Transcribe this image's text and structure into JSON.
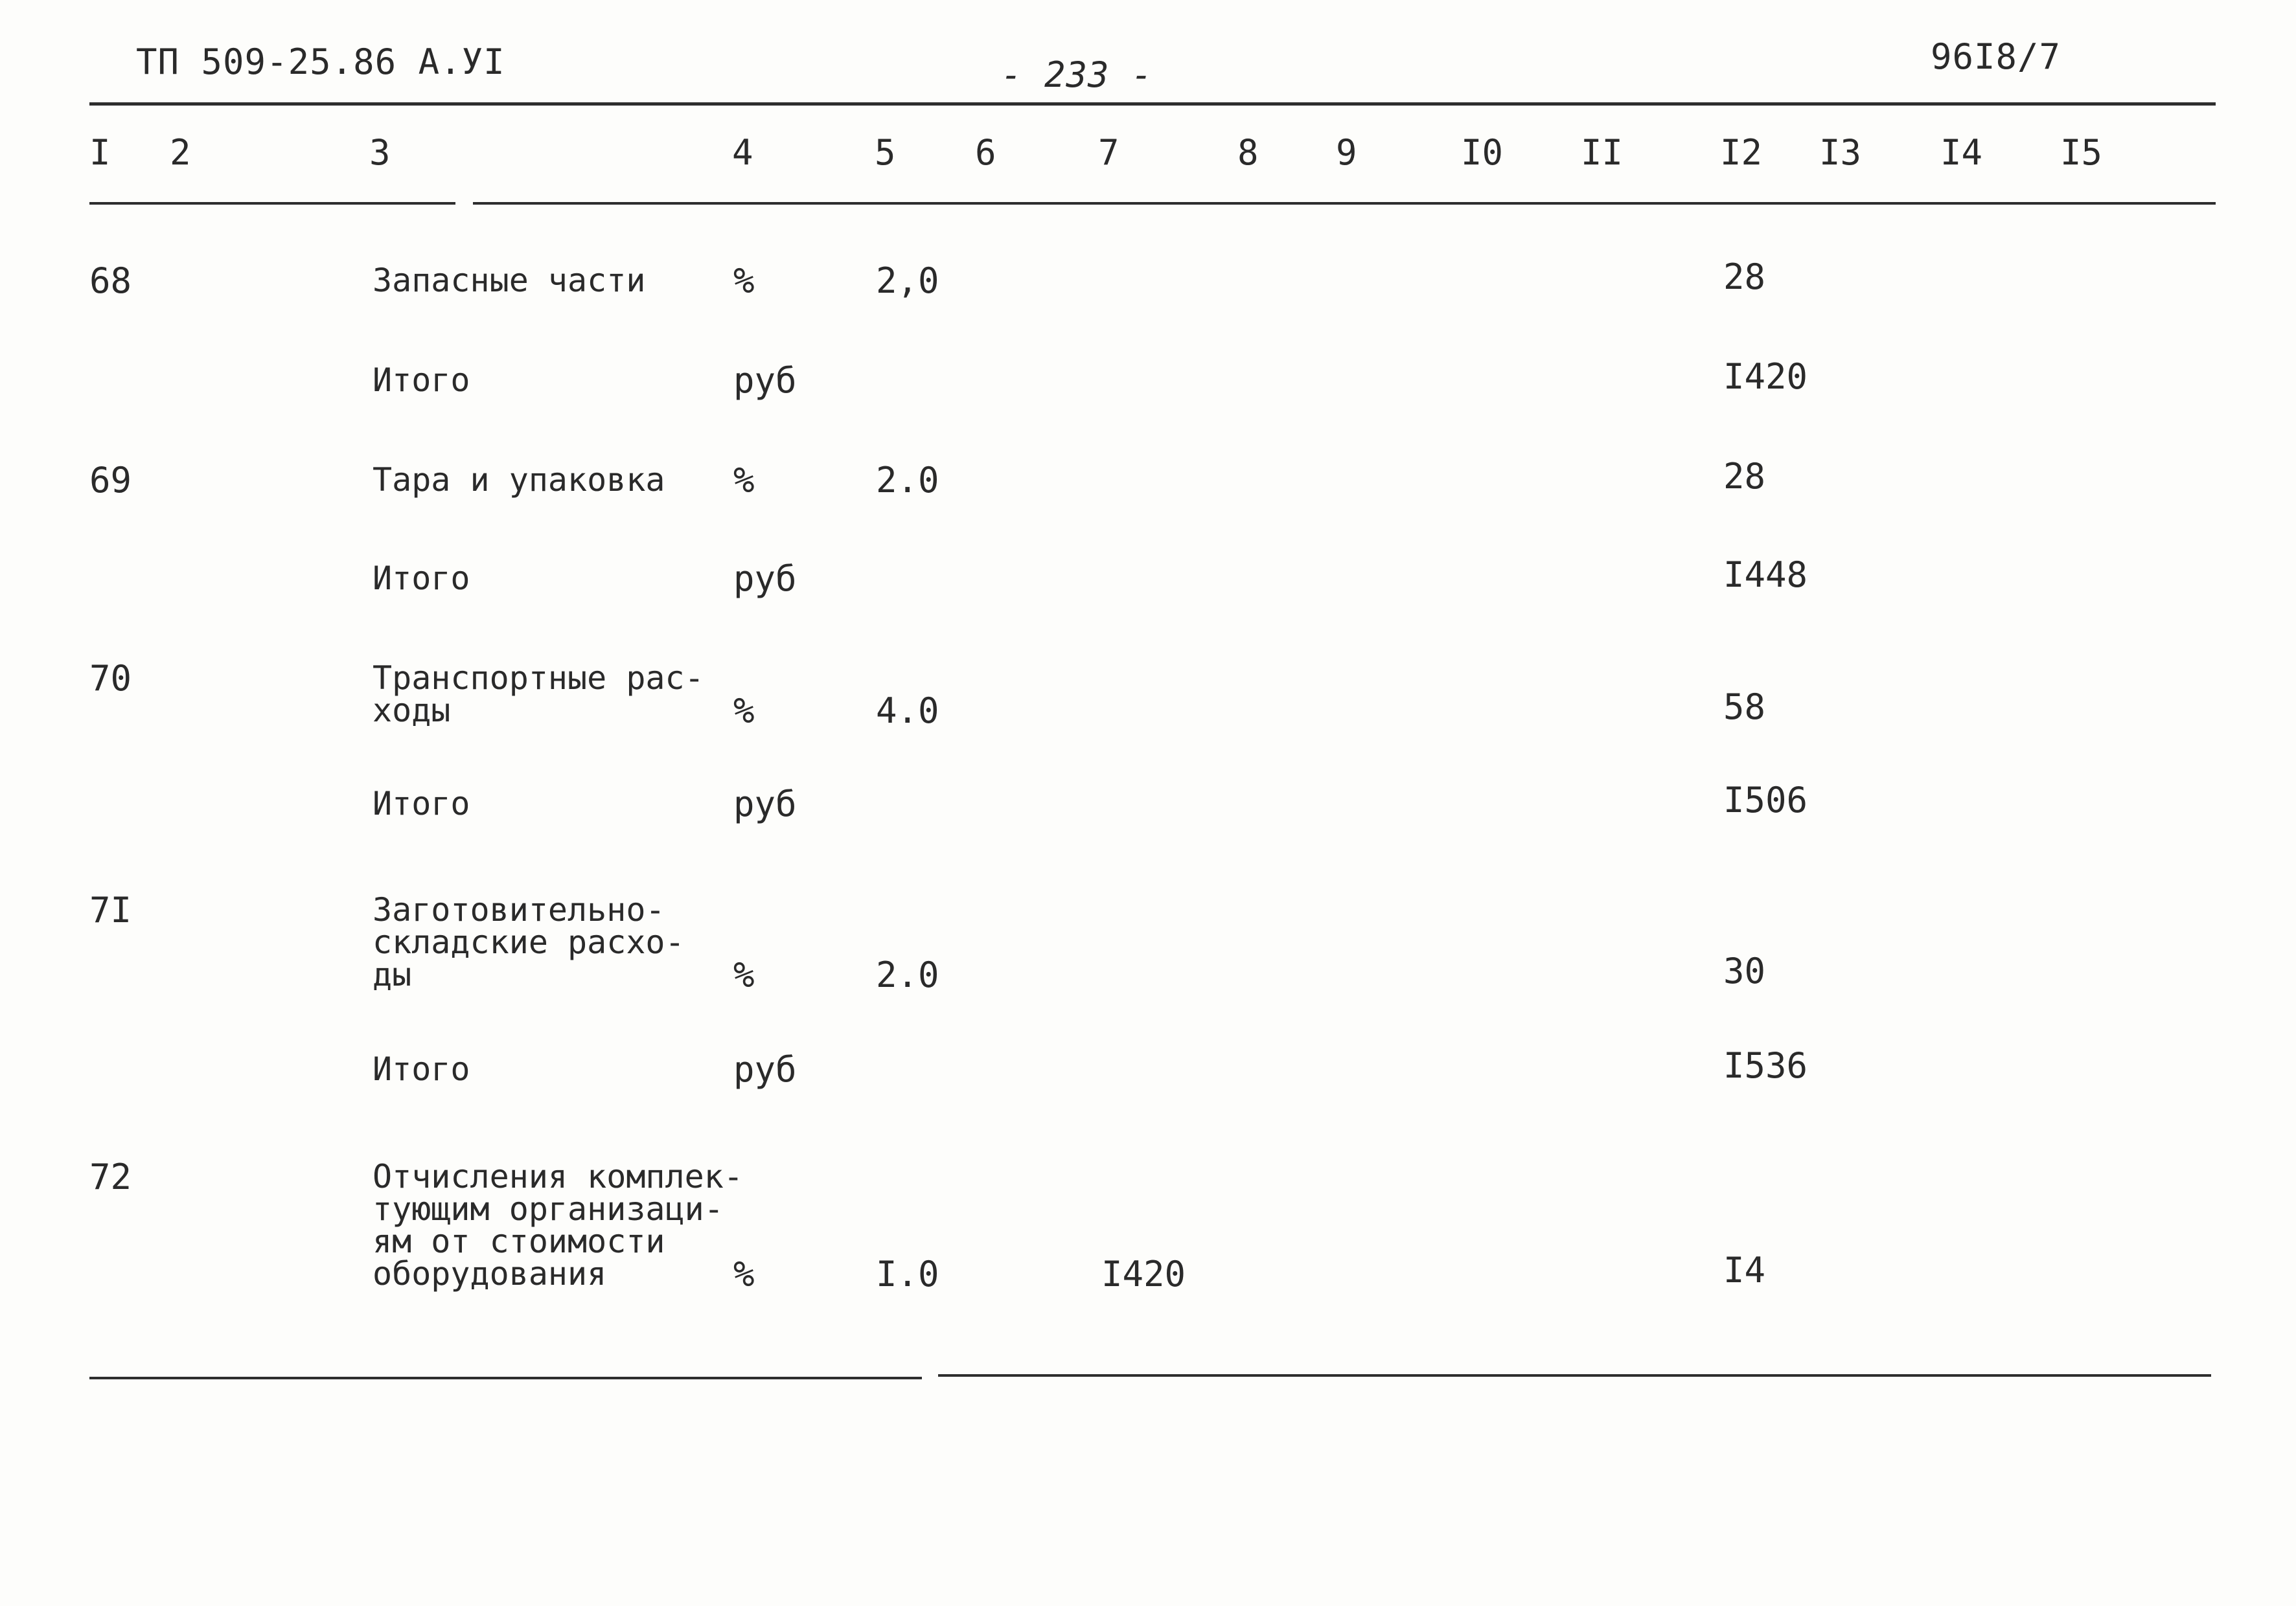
{
  "header": {
    "doc_code": "ТП 509-25.86  А.УI",
    "page_number": "- 233 -",
    "sheet_code": "96I8/7"
  },
  "columns": [
    "I",
    "2",
    "3",
    "4",
    "5",
    "6",
    "7",
    "8",
    "9",
    "I0",
    "II",
    "I2",
    "I3",
    "I4",
    "I5"
  ],
  "rows": [
    {
      "num": "68",
      "desc": [
        "Запасные части"
      ],
      "unit": "%",
      "c5": "2,0",
      "c7": "",
      "c12": "28"
    },
    {
      "num": "",
      "desc": [
        "Итого"
      ],
      "unit": "руб",
      "c5": "",
      "c7": "",
      "c12": "I420"
    },
    {
      "num": "69",
      "desc": [
        "Тара и упаковка"
      ],
      "unit": "%",
      "c5": "2.0",
      "c7": "",
      "c12": "28"
    },
    {
      "num": "",
      "desc": [
        "Итого"
      ],
      "unit": "руб",
      "c5": "",
      "c7": "",
      "c12": "I448"
    },
    {
      "num": "70",
      "desc": [
        "Транспортные рас-",
        "ходы"
      ],
      "unit": "%",
      "c5": "4.0",
      "c7": "",
      "c12": "58"
    },
    {
      "num": "",
      "desc": [
        "Итого"
      ],
      "unit": "руб",
      "c5": "",
      "c7": "",
      "c12": "I506"
    },
    {
      "num": "7I",
      "desc": [
        "Заготовительно-",
        "складские расхо-",
        "ды"
      ],
      "unit": "%",
      "c5": "2.0",
      "c7": "",
      "c12": "30"
    },
    {
      "num": "",
      "desc": [
        "Итого"
      ],
      "unit": "руб",
      "c5": "",
      "c7": "",
      "c12": "I536"
    },
    {
      "num": "72",
      "desc": [
        "Отчисления комплек-",
        "тующим организаци-",
        "ям от стоимости",
        "оборудования"
      ],
      "unit": "%",
      "c5": "I.0",
      "c7": "I420",
      "c12": "I4"
    }
  ]
}
